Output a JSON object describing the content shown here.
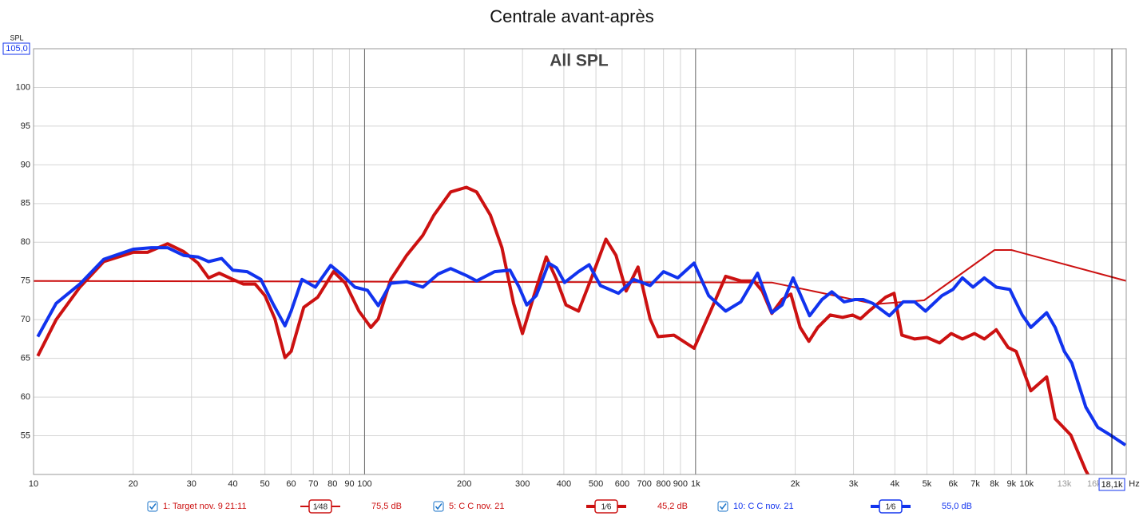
{
  "chart_data": {
    "type": "line",
    "title": "Centrale avant-après",
    "subtitle": "All SPL",
    "y_label": "SPL",
    "x_label": "Hz",
    "xscale": "log",
    "grid": true,
    "xlim": [
      10,
      20000
    ],
    "ylim": [
      50,
      105
    ],
    "yticks": [
      55,
      60,
      65,
      70,
      75,
      80,
      85,
      90,
      95,
      100,
      {
        "value": 105,
        "label": "105,0"
      }
    ],
    "xticks": [
      10,
      20,
      30,
      40,
      50,
      60,
      70,
      80,
      90,
      100,
      200,
      300,
      400,
      500,
      600,
      700,
      800,
      900,
      {
        "value": 1000,
        "label": "1k"
      },
      {
        "value": 2000,
        "label": "2k"
      },
      {
        "value": 3000,
        "label": "3k"
      },
      {
        "value": 4000,
        "label": "4k"
      },
      {
        "value": 5000,
        "label": "5k"
      },
      {
        "value": 6000,
        "label": "6k"
      },
      {
        "value": 7000,
        "label": "7k"
      },
      {
        "value": 8000,
        "label": "8k"
      },
      {
        "value": 9000,
        "label": "9k"
      },
      {
        "value": 10000,
        "label": "10k"
      },
      {
        "value": 13000,
        "label": "13k"
      },
      {
        "value": 16000,
        "label": "16k"
      }
    ],
    "cursor": {
      "value": 18100,
      "label": "18,1k"
    },
    "series": [
      {
        "name": "1: Target nov. 9 21:11",
        "color": "#cc1111",
        "width": 2,
        "smoothing": "1⁄48",
        "offset": "75,5 dB",
        "x": [
          10,
          1700,
          3500,
          4900,
          8000,
          9000,
          20000
        ],
        "values": [
          75,
          74.8,
          72.0,
          72.5,
          79,
          79,
          75
        ]
      },
      {
        "name": "5: C C nov. 21",
        "color": "#cc1111",
        "width": 4,
        "smoothing": "1⁄6",
        "offset": "45,2 dB",
        "x": [
          10.3,
          11.7,
          13.8,
          16.3,
          20,
          22.1,
          25.4,
          28.4,
          31.4,
          33.8,
          36.4,
          40,
          43,
          46.7,
          50,
          53.6,
          57.5,
          60,
          65.5,
          72.2,
          80.6,
          87.5,
          96.2,
          104.5,
          110,
          120,
          134,
          150,
          162,
          182,
          203,
          218,
          240,
          260,
          282,
          300,
          325,
          354,
          380,
          406,
          443,
          488,
          536,
          575,
          617,
          670,
          729,
          770,
          860,
          990,
          1110,
          1233,
          1370,
          1500,
          1590,
          1700,
          1825,
          1940,
          2070,
          2200,
          2340,
          2550,
          2780,
          2980,
          3150,
          3340,
          3750,
          3980,
          4200,
          4590,
          5000,
          5460,
          5920,
          6400,
          6960,
          7450,
          8100,
          8800,
          9300,
          10300,
          11500,
          12200,
          13600,
          15100,
          15600
        ],
        "values": [
          65.3,
          70.0,
          74.2,
          77.5,
          78.7,
          78.7,
          79.8,
          78.8,
          77.3,
          75.4,
          76.0,
          75.2,
          74.6,
          74.6,
          73.1,
          70.1,
          65.1,
          65.9,
          71.6,
          72.9,
          76.2,
          74.7,
          71.1,
          69.0,
          70.1,
          75.2,
          78.3,
          80.9,
          83.5,
          86.5,
          87.1,
          86.5,
          83.5,
          79.3,
          72.1,
          68.2,
          73.1,
          78.1,
          75.2,
          71.9,
          71.1,
          75.7,
          80.4,
          78.3,
          73.7,
          76.8,
          70.1,
          67.8,
          68.0,
          66.3,
          71.1,
          75.6,
          75.0,
          75.0,
          73.7,
          70.8,
          72.6,
          73.3,
          69.0,
          67.2,
          69.0,
          70.6,
          70.3,
          70.6,
          70.1,
          71.1,
          72.9,
          73.4,
          68.0,
          67.5,
          67.7,
          67.0,
          68.2,
          67.5,
          68.2,
          67.5,
          68.7,
          66.4,
          65.9,
          60.8,
          62.6,
          57.2,
          55.1,
          50.5,
          49.4
        ]
      },
      {
        "name": "10: C C nov. 21",
        "color": "#1133ee",
        "width": 4,
        "smoothing": "1⁄6",
        "offset": "55,0 dB",
        "x": [
          10.3,
          11.7,
          13.8,
          16.3,
          20,
          22.7,
          25.4,
          28.4,
          31.4,
          33.8,
          37,
          40,
          44.2,
          48.6,
          52.8,
          57.5,
          60,
          64.7,
          71,
          79,
          86,
          93.5,
          102,
          110,
          120,
          134,
          150,
          167,
          182,
          203,
          218,
          247,
          275,
          293,
          309,
          330,
          360,
          380,
          402,
          443,
          477,
          516,
          585,
          650,
          729,
          800,
          884,
          990,
          1095,
          1233,
          1370,
          1540,
          1700,
          1825,
          1970,
          2210,
          2410,
          2580,
          2810,
          3030,
          3210,
          3430,
          3850,
          4240,
          4590,
          4950,
          5550,
          5990,
          6400,
          6890,
          7450,
          8100,
          8900,
          9700,
          10300,
          11500,
          12200,
          13000,
          13700,
          15100,
          16400,
          17900,
          19900
        ],
        "values": [
          67.8,
          72.1,
          74.6,
          77.8,
          79.1,
          79.3,
          79.3,
          78.3,
          78.1,
          77.5,
          77.9,
          76.4,
          76.2,
          75.2,
          72.1,
          69.2,
          71.1,
          75.2,
          74.2,
          77.0,
          75.7,
          74.2,
          73.8,
          71.8,
          74.7,
          74.9,
          74.2,
          75.9,
          76.6,
          75.7,
          75.0,
          76.2,
          76.4,
          74.2,
          71.9,
          73.1,
          77.3,
          76.7,
          74.8,
          76.2,
          77.1,
          74.4,
          73.4,
          75.2,
          74.4,
          76.2,
          75.4,
          77.3,
          73.1,
          71.1,
          72.3,
          76.0,
          70.9,
          71.9,
          75.4,
          70.5,
          72.6,
          73.6,
          72.3,
          72.6,
          72.6,
          72.1,
          70.5,
          72.3,
          72.3,
          71.1,
          73.1,
          73.9,
          75.4,
          74.2,
          75.4,
          74.2,
          73.9,
          70.6,
          69.0,
          70.9,
          69.0,
          65.9,
          64.4,
          58.7,
          56.1,
          55.1,
          53.8
        ]
      }
    ]
  }
}
